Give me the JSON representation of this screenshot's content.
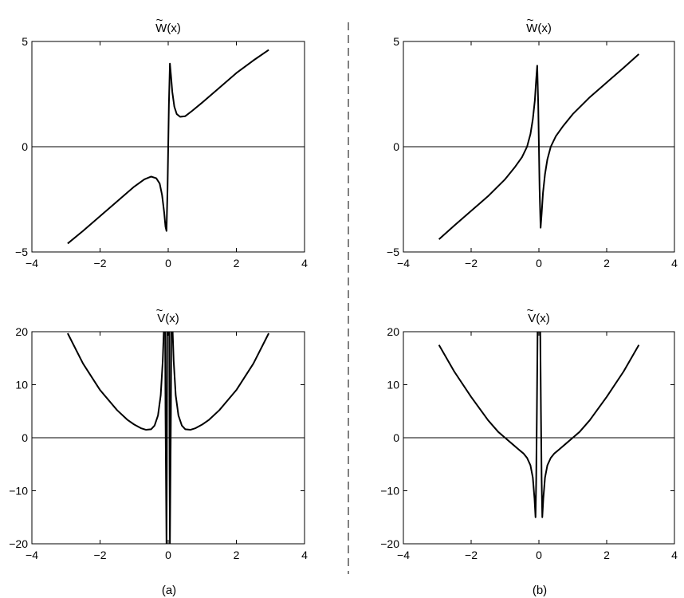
{
  "figure": {
    "panel_labels": [
      "(a)",
      "(b)"
    ],
    "divider": "dashed"
  },
  "chart_data": [
    {
      "id": "a-top",
      "type": "line",
      "title": "W(x)",
      "title_accent": "~",
      "xlim": [
        -4,
        4
      ],
      "ylim": [
        -5,
        5
      ],
      "xticks": [
        -4,
        -2,
        0,
        2,
        4
      ],
      "yticks": [
        -5,
        0,
        5
      ],
      "xtick_labels": [
        "−4",
        "−2",
        "0",
        "2",
        "4"
      ],
      "ytick_labels": [
        "−5",
        "0",
        "5"
      ],
      "grid": false,
      "reference_line_y": 0,
      "series": [
        {
          "x": [
            -2.95,
            -2.5,
            -2.0,
            -1.5,
            -1.0,
            -0.7,
            -0.5,
            -0.35,
            -0.25,
            -0.18,
            -0.12,
            -0.08,
            -0.05,
            -0.02,
            0.0,
            0.02,
            0.05,
            0.08,
            0.12,
            0.18,
            0.25,
            0.35,
            0.5,
            0.7,
            1.0,
            1.5,
            2.0,
            2.5,
            2.95
          ],
          "y": [
            -4.6,
            -4.0,
            -3.3,
            -2.6,
            -1.9,
            -1.55,
            -1.42,
            -1.5,
            -1.75,
            -2.3,
            -3.1,
            -3.8,
            -4.0,
            -2.0,
            0.0,
            2.0,
            3.95,
            3.4,
            2.6,
            1.9,
            1.55,
            1.42,
            1.45,
            1.7,
            2.1,
            2.8,
            3.5,
            4.1,
            4.6
          ]
        }
      ]
    },
    {
      "id": "b-top",
      "type": "line",
      "title": "W(x)",
      "title_accent": "~",
      "xlim": [
        -4,
        4
      ],
      "ylim": [
        -5,
        5
      ],
      "xticks": [
        -4,
        -2,
        0,
        2,
        4
      ],
      "yticks": [
        -5,
        0,
        5
      ],
      "xtick_labels": [
        "−4",
        "−2",
        "0",
        "2",
        "4"
      ],
      "ytick_labels": [
        "−5",
        "0",
        "5"
      ],
      "grid": false,
      "reference_line_y": 0,
      "series": [
        {
          "x": [
            -2.95,
            -2.5,
            -2.0,
            -1.5,
            -1.0,
            -0.7,
            -0.5,
            -0.35,
            -0.25,
            -0.18,
            -0.12,
            -0.08,
            -0.05,
            -0.02,
            0.0,
            0.02,
            0.05,
            0.08,
            0.12,
            0.18,
            0.25,
            0.35,
            0.5,
            0.7,
            1.0,
            1.5,
            2.0,
            2.5,
            2.95
          ],
          "y": [
            -4.4,
            -3.75,
            -3.05,
            -2.35,
            -1.55,
            -0.95,
            -0.5,
            0.0,
            0.6,
            1.3,
            2.2,
            3.2,
            3.85,
            2.0,
            0.0,
            -2.0,
            -3.85,
            -3.2,
            -2.2,
            -1.3,
            -0.6,
            0.0,
            0.5,
            0.95,
            1.55,
            2.35,
            3.05,
            3.75,
            4.4
          ]
        }
      ]
    },
    {
      "id": "a-bottom",
      "type": "line",
      "title": "V(x)",
      "title_accent": "~",
      "xlim": [
        -4,
        4
      ],
      "ylim": [
        -20,
        20
      ],
      "xticks": [
        -4,
        -2,
        0,
        2,
        4
      ],
      "yticks": [
        -20,
        -10,
        0,
        10,
        20
      ],
      "xtick_labels": [
        "−4",
        "−2",
        "0",
        "2",
        "4"
      ],
      "ytick_labels": [
        "−20",
        "−10",
        "0",
        "10",
        "20"
      ],
      "grid": false,
      "reference_line_y": 0,
      "series": [
        {
          "x": [
            -2.95,
            -2.5,
            -2.0,
            -1.5,
            -1.2,
            -1.0,
            -0.8,
            -0.65,
            -0.5,
            -0.4,
            -0.3,
            -0.22,
            -0.16,
            -0.13
          ],
          "y": [
            19.7,
            14.0,
            9.0,
            5.2,
            3.4,
            2.5,
            1.8,
            1.5,
            1.6,
            2.3,
            4.2,
            8.0,
            14.5,
            20.0
          ]
        },
        {
          "x": [
            -0.09,
            -0.08,
            -0.06,
            -0.05,
            -0.04,
            -0.03
          ],
          "y": [
            20.0,
            5.0,
            -12.0,
            -20.0,
            -6.0,
            20.0
          ]
        },
        {
          "x": [
            0.03,
            0.04,
            0.05,
            0.06,
            0.08,
            0.09
          ],
          "y": [
            20.0,
            -6.0,
            -20.0,
            -12.0,
            5.0,
            20.0
          ]
        },
        {
          "x": [
            0.13,
            0.16,
            0.22,
            0.3,
            0.4,
            0.5,
            0.65,
            0.8,
            1.0,
            1.2,
            1.5,
            2.0,
            2.5,
            2.95
          ],
          "y": [
            20.0,
            14.5,
            8.0,
            4.2,
            2.3,
            1.6,
            1.5,
            1.8,
            2.5,
            3.4,
            5.2,
            9.0,
            14.0,
            19.7
          ]
        }
      ]
    },
    {
      "id": "b-bottom",
      "type": "line",
      "title": "V(x)",
      "title_accent": "~",
      "xlim": [
        -4,
        4
      ],
      "ylim": [
        -20,
        20
      ],
      "xticks": [
        -4,
        -2,
        0,
        2,
        4
      ],
      "yticks": [
        -20,
        -10,
        0,
        10,
        20
      ],
      "xtick_labels": [
        "−4",
        "−2",
        "0",
        "2",
        "4"
      ],
      "ytick_labels": [
        "−20",
        "−10",
        "0",
        "10",
        "20"
      ],
      "grid": false,
      "reference_line_y": 0,
      "series": [
        {
          "x": [
            -2.95,
            -2.5,
            -2.0,
            -1.5,
            -1.2,
            -1.0,
            -0.8,
            -0.6,
            -0.45,
            -0.35,
            -0.25,
            -0.18,
            -0.13,
            -0.1,
            -0.08,
            -0.06,
            -0.04
          ],
          "y": [
            17.5,
            12.5,
            7.7,
            3.3,
            1.1,
            0.0,
            -1.1,
            -2.2,
            -3.0,
            -3.8,
            -5.2,
            -7.5,
            -11.5,
            -15.0,
            -8.0,
            5.0,
            20.0
          ]
        },
        {
          "x": [
            0.04,
            0.06,
            0.08,
            0.1,
            0.13,
            0.18,
            0.25,
            0.35,
            0.45,
            0.6,
            0.8,
            1.0,
            1.2,
            1.5,
            2.0,
            2.5,
            2.95
          ],
          "y": [
            20.0,
            5.0,
            -8.0,
            -15.0,
            -11.5,
            -7.5,
            -5.2,
            -3.8,
            -3.0,
            -2.2,
            -1.1,
            0.0,
            1.1,
            3.3,
            7.7,
            12.5,
            17.5
          ]
        }
      ]
    }
  ]
}
